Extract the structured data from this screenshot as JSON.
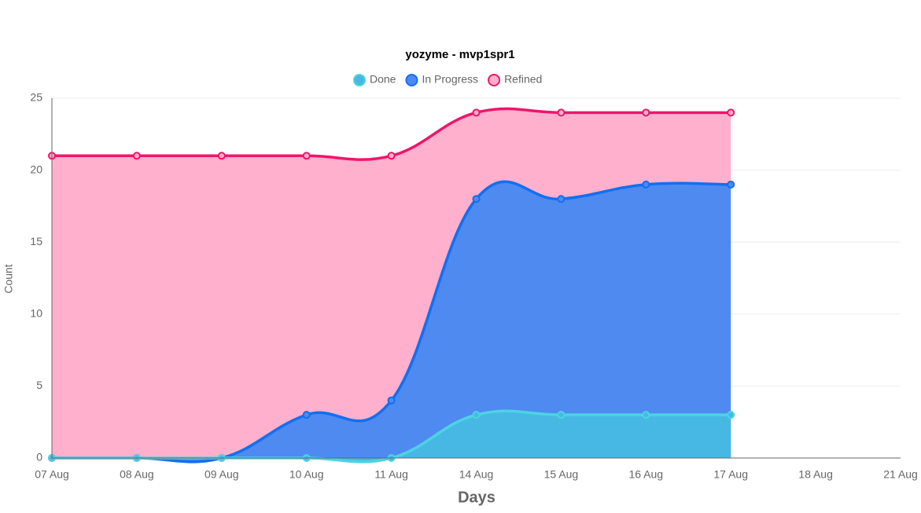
{
  "chart_data": {
    "type": "area",
    "title": "yozyme - mvp1spr1",
    "categories": [
      "07 Aug",
      "08 Aug",
      "09 Aug",
      "10 Aug",
      "11 Aug",
      "14 Aug",
      "15 Aug",
      "16 Aug",
      "17 Aug",
      "18 Aug",
      "21 Aug"
    ],
    "series": [
      {
        "name": "Refined",
        "color": "#f0156a",
        "fill": "#ffb0cd",
        "values": [
          21,
          21,
          21,
          21,
          21,
          24,
          24,
          24,
          24,
          null,
          null
        ]
      },
      {
        "name": "In Progress",
        "color": "#1170f0",
        "fill": "#4e8af0",
        "values": [
          0,
          0,
          0,
          3,
          4,
          18,
          18,
          19,
          19,
          null,
          null
        ]
      },
      {
        "name": "Done",
        "color": "#4dd3e3",
        "fill": "#47b8e4",
        "values": [
          0,
          0,
          0,
          0,
          0,
          3,
          3,
          3,
          3,
          null,
          null
        ]
      }
    ],
    "legend_order": [
      "Done",
      "In Progress",
      "Refined"
    ],
    "xlabel": "Days",
    "ylabel": "Count",
    "ylim": [
      0,
      25
    ],
    "yticks": [
      0,
      5,
      10,
      15,
      20,
      25
    ],
    "grid": true,
    "legend": "top"
  }
}
